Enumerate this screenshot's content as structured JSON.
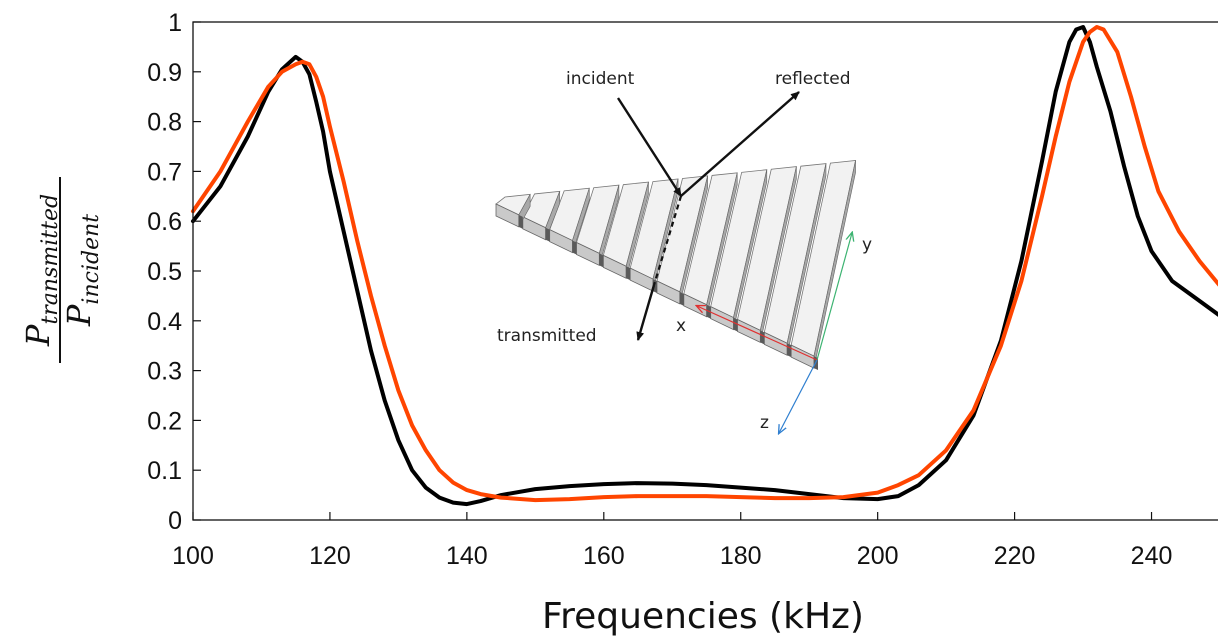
{
  "chart_data": {
    "type": "line",
    "xlabel": "Frequencies (kHz)",
    "ylabel": {
      "numerator": "P",
      "numerator_sub": "transmitted",
      "denominator": "P",
      "denominator_sub": "incident"
    },
    "xlim": [
      100,
      250
    ],
    "ylim": [
      0,
      1
    ],
    "xticks": [
      100,
      120,
      140,
      160,
      180,
      200,
      220,
      240
    ],
    "yticks": [
      "0",
      "0.1",
      "0.2",
      "0.3",
      "0.4",
      "0.5",
      "0.6",
      "0.7",
      "0.8",
      "0.9",
      "1"
    ],
    "grid": false,
    "series": [
      {
        "color": "#000000",
        "x": [
          100,
          104,
          108,
          111,
          113,
          115,
          116,
          117,
          118,
          119,
          120,
          122,
          124,
          126,
          128,
          130,
          132,
          134,
          136,
          138,
          140,
          142,
          145,
          150,
          155,
          160,
          165,
          170,
          175,
          180,
          185,
          190,
          195,
          200,
          203,
          206,
          210,
          214,
          218,
          221,
          224,
          226,
          228,
          229,
          230,
          231,
          232,
          234,
          236,
          238,
          240,
          243,
          246,
          250
        ],
        "y": [
          0.6,
          0.67,
          0.77,
          0.86,
          0.905,
          0.93,
          0.92,
          0.895,
          0.84,
          0.78,
          0.7,
          0.58,
          0.46,
          0.34,
          0.24,
          0.16,
          0.1,
          0.065,
          0.045,
          0.035,
          0.032,
          0.038,
          0.05,
          0.062,
          0.068,
          0.072,
          0.074,
          0.073,
          0.07,
          0.065,
          0.06,
          0.052,
          0.044,
          0.042,
          0.048,
          0.07,
          0.12,
          0.21,
          0.36,
          0.52,
          0.72,
          0.86,
          0.96,
          0.985,
          0.99,
          0.96,
          0.91,
          0.82,
          0.71,
          0.61,
          0.54,
          0.48,
          0.45,
          0.41
        ]
      },
      {
        "color": "#ff4500",
        "x": [
          100,
          104,
          108,
          111,
          113,
          115,
          116,
          117,
          118,
          119,
          120,
          122,
          124,
          126,
          128,
          130,
          132,
          134,
          136,
          138,
          140,
          142,
          145,
          150,
          155,
          160,
          165,
          170,
          175,
          180,
          185,
          190,
          195,
          200,
          203,
          206,
          210,
          214,
          218,
          221,
          224,
          226,
          228,
          230,
          231,
          232,
          233,
          235,
          237,
          239,
          241,
          244,
          247,
          250
        ],
        "y": [
          0.62,
          0.7,
          0.8,
          0.87,
          0.9,
          0.915,
          0.92,
          0.915,
          0.89,
          0.85,
          0.79,
          0.68,
          0.56,
          0.45,
          0.35,
          0.26,
          0.19,
          0.14,
          0.1,
          0.075,
          0.06,
          0.052,
          0.045,
          0.04,
          0.042,
          0.046,
          0.048,
          0.048,
          0.048,
          0.046,
          0.044,
          0.044,
          0.046,
          0.055,
          0.07,
          0.09,
          0.14,
          0.22,
          0.35,
          0.48,
          0.65,
          0.77,
          0.88,
          0.96,
          0.98,
          0.99,
          0.985,
          0.94,
          0.85,
          0.75,
          0.66,
          0.58,
          0.52,
          0.47
        ]
      }
    ],
    "inset": {
      "labels": {
        "incident": "incident",
        "reflected": "reflected",
        "transmitted": "transmitted"
      },
      "axes": {
        "x": "x",
        "y": "y",
        "z": "z"
      }
    }
  }
}
